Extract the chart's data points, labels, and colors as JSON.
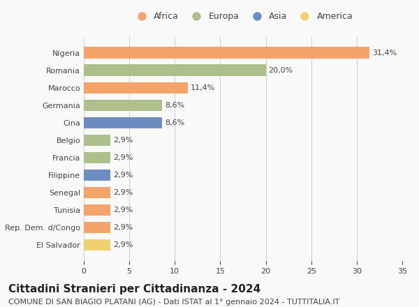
{
  "countries": [
    "Nigeria",
    "Romania",
    "Marocco",
    "Germania",
    "Cina",
    "Belgio",
    "Francia",
    "Filippine",
    "Senegal",
    "Tunisia",
    "Rep. Dem. d/Congo",
    "El Salvador"
  ],
  "values": [
    31.4,
    20.0,
    11.4,
    8.6,
    8.6,
    2.9,
    2.9,
    2.9,
    2.9,
    2.9,
    2.9,
    2.9
  ],
  "labels": [
    "31,4%",
    "20,0%",
    "11,4%",
    "8,6%",
    "8,6%",
    "2,9%",
    "2,9%",
    "2,9%",
    "2,9%",
    "2,9%",
    "2,9%",
    "2,9%"
  ],
  "colors": [
    "#F4A46A",
    "#ADBF8A",
    "#F4A46A",
    "#ADBF8A",
    "#6B8DBF",
    "#ADBF8A",
    "#ADBF8A",
    "#6B8DBF",
    "#F4A46A",
    "#F4A46A",
    "#F4A46A",
    "#F0D070"
  ],
  "legend_labels": [
    "Africa",
    "Europa",
    "Asia",
    "America"
  ],
  "legend_colors": [
    "#F4A46A",
    "#ADBF8A",
    "#6B8DBF",
    "#F0D070"
  ],
  "xlim": [
    0,
    35
  ],
  "xticks": [
    0,
    5,
    10,
    15,
    20,
    25,
    30,
    35
  ],
  "title": "Cittadini Stranieri per Cittadinanza - 2024",
  "subtitle": "COMUNE DI SAN BIAGIO PLATANI (AG) - Dati ISTAT al 1° gennaio 2024 - TUTTITALIA.IT",
  "background_color": "#f9f9f9",
  "bar_height": 0.65,
  "title_fontsize": 11,
  "subtitle_fontsize": 8,
  "label_fontsize": 8,
  "tick_fontsize": 8,
  "legend_fontsize": 9
}
